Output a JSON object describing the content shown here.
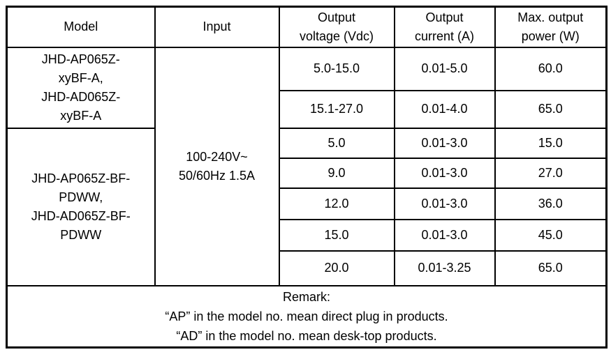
{
  "table": {
    "header": {
      "model": [
        "Model"
      ],
      "input": [
        "Input"
      ],
      "voltage": [
        "Output",
        "voltage (Vdc)"
      ],
      "current": [
        "Output",
        "current (A)"
      ],
      "power": [
        "Max. output",
        "power (W)"
      ]
    },
    "models": {
      "group1": [
        "JHD-AP065Z-",
        "xyBF-A,",
        "JHD-AD065Z-",
        "xyBF-A"
      ],
      "group2": [
        "JHD-AP065Z-BF-",
        "PDWW,",
        "JHD-AD065Z-BF-",
        "PDWW"
      ]
    },
    "input_value": [
      "100-240V~",
      "50/60Hz 1.5A"
    ],
    "rows": [
      {
        "voltage": "5.0-15.0",
        "current": "0.01-5.0",
        "power": "60.0"
      },
      {
        "voltage": "15.1-27.0",
        "current": "0.01-4.0",
        "power": "65.0"
      },
      {
        "voltage": "5.0",
        "current": "0.01-3.0",
        "power": "15.0"
      },
      {
        "voltage": "9.0",
        "current": "0.01-3.0",
        "power": "27.0"
      },
      {
        "voltage": "12.0",
        "current": "0.01-3.0",
        "power": "36.0"
      },
      {
        "voltage": "15.0",
        "current": "0.01-3.0",
        "power": "45.0"
      },
      {
        "voltage": "20.0",
        "current": "0.01-3.25",
        "power": "65.0"
      }
    ],
    "remark": [
      "Remark:",
      "“AP” in the model no. mean direct plug in products.",
      "“AD” in the model no. mean desk-top products."
    ]
  },
  "colors": {
    "text": "#000000",
    "border": "#000000",
    "background": "#ffffff"
  }
}
